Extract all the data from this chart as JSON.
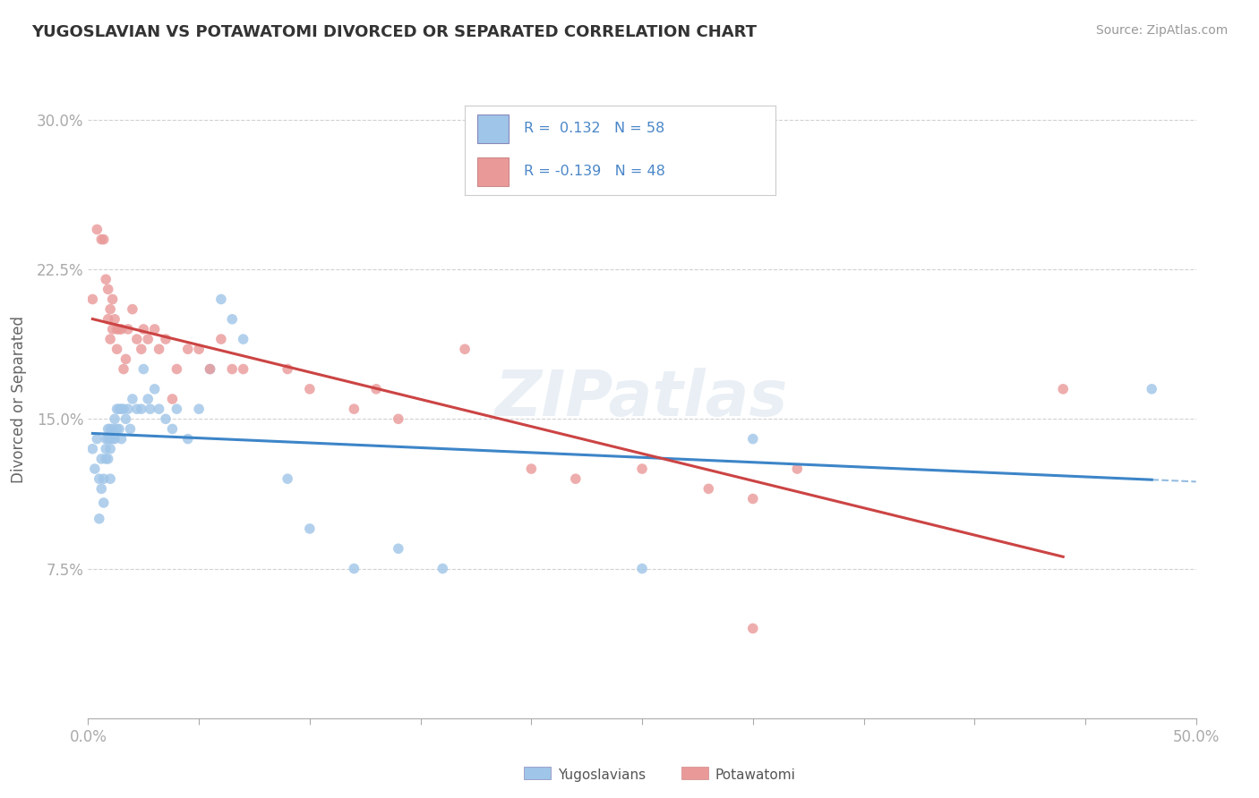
{
  "title": "YUGOSLAVIAN VS POTAWATOMI DIVORCED OR SEPARATED CORRELATION CHART",
  "source": "Source: ZipAtlas.com",
  "ylabel": "Divorced or Separated",
  "xlim": [
    0.0,
    0.5
  ],
  "ylim": [
    0.0,
    0.32
  ],
  "ytick_vals": [
    0.075,
    0.15,
    0.225,
    0.3
  ],
  "ytick_labels": [
    "7.5%",
    "15.0%",
    "22.5%",
    "30.0%"
  ],
  "blue_color": "#9fc5e8",
  "pink_color": "#ea9999",
  "trend_blue": "#3d85c8",
  "trend_pink": "#cc4444",
  "blue_scatter_x": [
    0.002,
    0.003,
    0.004,
    0.005,
    0.005,
    0.006,
    0.006,
    0.007,
    0.007,
    0.008,
    0.008,
    0.008,
    0.009,
    0.009,
    0.009,
    0.01,
    0.01,
    0.01,
    0.01,
    0.011,
    0.011,
    0.012,
    0.012,
    0.013,
    0.013,
    0.014,
    0.014,
    0.015,
    0.015,
    0.016,
    0.017,
    0.018,
    0.019,
    0.02,
    0.022,
    0.024,
    0.025,
    0.027,
    0.028,
    0.03,
    0.032,
    0.035,
    0.038,
    0.04,
    0.045,
    0.05,
    0.055,
    0.06,
    0.065,
    0.07,
    0.09,
    0.1,
    0.12,
    0.14,
    0.16,
    0.25,
    0.3,
    0.48
  ],
  "blue_scatter_y": [
    0.135,
    0.125,
    0.14,
    0.12,
    0.1,
    0.13,
    0.115,
    0.12,
    0.108,
    0.14,
    0.135,
    0.13,
    0.145,
    0.14,
    0.13,
    0.145,
    0.14,
    0.135,
    0.12,
    0.145,
    0.14,
    0.15,
    0.14,
    0.155,
    0.145,
    0.155,
    0.145,
    0.155,
    0.14,
    0.155,
    0.15,
    0.155,
    0.145,
    0.16,
    0.155,
    0.155,
    0.175,
    0.16,
    0.155,
    0.165,
    0.155,
    0.15,
    0.145,
    0.155,
    0.14,
    0.155,
    0.175,
    0.21,
    0.2,
    0.19,
    0.12,
    0.095,
    0.075,
    0.085,
    0.075,
    0.075,
    0.14,
    0.165
  ],
  "pink_scatter_x": [
    0.002,
    0.004,
    0.006,
    0.007,
    0.008,
    0.009,
    0.009,
    0.01,
    0.01,
    0.011,
    0.011,
    0.012,
    0.013,
    0.013,
    0.014,
    0.015,
    0.016,
    0.017,
    0.018,
    0.02,
    0.022,
    0.024,
    0.025,
    0.027,
    0.03,
    0.032,
    0.035,
    0.038,
    0.04,
    0.045,
    0.05,
    0.055,
    0.06,
    0.065,
    0.07,
    0.09,
    0.1,
    0.12,
    0.13,
    0.14,
    0.17,
    0.2,
    0.22,
    0.25,
    0.28,
    0.3,
    0.32,
    0.44
  ],
  "pink_scatter_y": [
    0.21,
    0.245,
    0.24,
    0.24,
    0.22,
    0.215,
    0.2,
    0.205,
    0.19,
    0.21,
    0.195,
    0.2,
    0.195,
    0.185,
    0.195,
    0.195,
    0.175,
    0.18,
    0.195,
    0.205,
    0.19,
    0.185,
    0.195,
    0.19,
    0.195,
    0.185,
    0.19,
    0.16,
    0.175,
    0.185,
    0.185,
    0.175,
    0.19,
    0.175,
    0.175,
    0.175,
    0.165,
    0.155,
    0.165,
    0.15,
    0.185,
    0.125,
    0.12,
    0.125,
    0.115,
    0.11,
    0.125,
    0.165
  ],
  "pink_extra_low_x": [
    0.3
  ],
  "pink_extra_low_y": [
    0.045
  ]
}
